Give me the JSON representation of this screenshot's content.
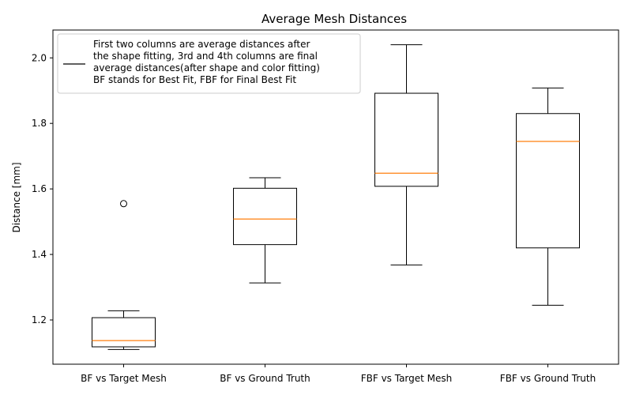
{
  "chart_data": {
    "type": "box",
    "title": "Average Mesh Distances",
    "xlabel": "",
    "ylabel": "Distance [mm]",
    "ylim": [
      1.065,
      2.085
    ],
    "yticks": [
      "1.2",
      "1.4",
      "1.6",
      "1.8",
      "2.0"
    ],
    "ytick_values": [
      1.2,
      1.4,
      1.6,
      1.8,
      2.0
    ],
    "grid": false,
    "legend": {
      "placement": "top-left",
      "lines": [
        "First two columns are average distances after",
        "the shape fitting, 3rd and 4th columns are final",
        "average distances(after shape and color fitting)",
        "BF stands for Best Fit, FBF for Final Best Fit"
      ]
    },
    "colors": {
      "box": "#000000",
      "median": "#ff7f0e"
    },
    "categories": [
      "BF vs Target Mesh",
      "BF vs Ground Truth",
      "FBF vs Target Mesh",
      "FBF vs Ground Truth"
    ],
    "boxes": [
      {
        "whisker_low": 1.11,
        "q1": 1.118,
        "median": 1.137,
        "q3": 1.207,
        "whisker_high": 1.228,
        "outliers": [
          1.555
        ]
      },
      {
        "whisker_low": 1.313,
        "q1": 1.43,
        "median": 1.508,
        "q3": 1.602,
        "whisker_high": 1.634,
        "outliers": []
      },
      {
        "whisker_low": 1.368,
        "q1": 1.608,
        "median": 1.648,
        "q3": 1.892,
        "whisker_high": 2.04,
        "outliers": []
      },
      {
        "whisker_low": 1.245,
        "q1": 1.42,
        "median": 1.745,
        "q3": 1.83,
        "whisker_high": 1.908,
        "outliers": []
      }
    ]
  }
}
